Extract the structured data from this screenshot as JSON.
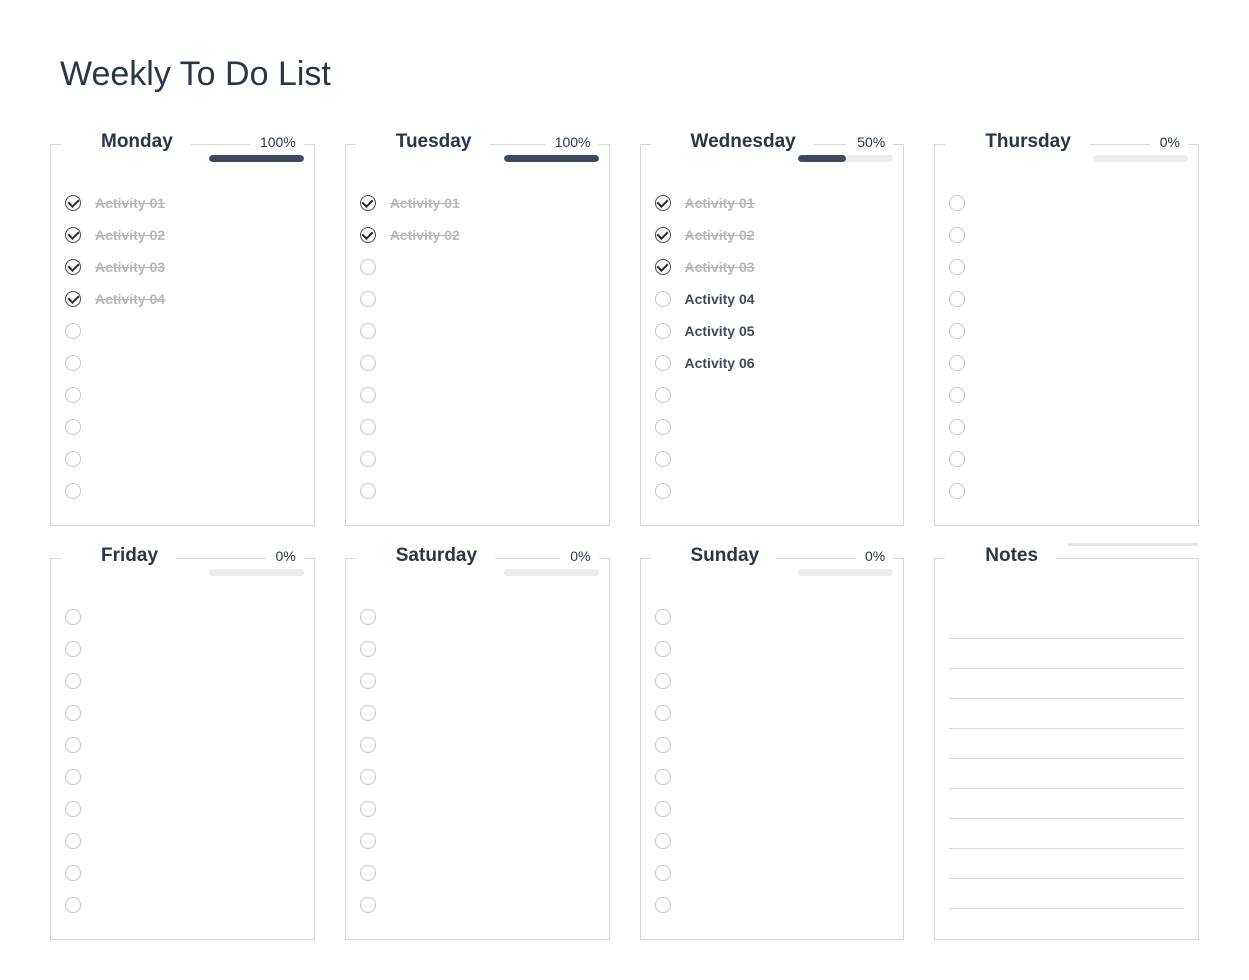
{
  "title": "Weekly To Do List",
  "rows_per_card": 10,
  "notes_lines": 10,
  "colors": {
    "page_bg": "#ffffff",
    "title_color": "#2a3644",
    "border_color": "#d6d6d6",
    "day_label_color": "#2a3644",
    "pct_color": "#2a3644",
    "progress_track": "#ededed",
    "progress_fill": "#3c4a5b",
    "checkbox_empty_border": "#c7c7c7",
    "checkbox_checked_border": "#4a4a4a",
    "checkmark_color": "#2a2a2a",
    "task_color": "#3c4a5b",
    "task_done_color": "#b8b8b8",
    "notes_bar_color": "#e5e5e5"
  },
  "typography": {
    "title_fontsize": 34,
    "title_weight": 400,
    "day_fontsize": 19,
    "day_weight": 700,
    "pct_fontsize": 14,
    "task_fontsize": 14,
    "task_weight": 600
  },
  "days": [
    {
      "name": "Monday",
      "percent_label": "100%",
      "percent": 100,
      "tasks": [
        {
          "label": "Activity 01",
          "done": true
        },
        {
          "label": "Activity 02",
          "done": true
        },
        {
          "label": "Activity 03",
          "done": true
        },
        {
          "label": "Activity 04",
          "done": true
        }
      ]
    },
    {
      "name": "Tuesday",
      "percent_label": "100%",
      "percent": 100,
      "tasks": [
        {
          "label": "Activity 01",
          "done": true
        },
        {
          "label": "Activity 02",
          "done": true
        }
      ]
    },
    {
      "name": "Wednesday",
      "percent_label": "50%",
      "percent": 50,
      "tasks": [
        {
          "label": "Activity 01",
          "done": true
        },
        {
          "label": "Activity 02",
          "done": true
        },
        {
          "label": "Activity 03",
          "done": true
        },
        {
          "label": "Activity 04",
          "done": false
        },
        {
          "label": "Activity 05",
          "done": false
        },
        {
          "label": "Activity 06",
          "done": false
        }
      ]
    },
    {
      "name": "Thursday",
      "percent_label": "0%",
      "percent": 0,
      "tasks": []
    },
    {
      "name": "Friday",
      "percent_label": "0%",
      "percent": 0,
      "tasks": []
    },
    {
      "name": "Saturday",
      "percent_label": "0%",
      "percent": 0,
      "tasks": []
    },
    {
      "name": "Sunday",
      "percent_label": "0%",
      "percent": 0,
      "tasks": []
    }
  ],
  "notes_label": "Notes"
}
